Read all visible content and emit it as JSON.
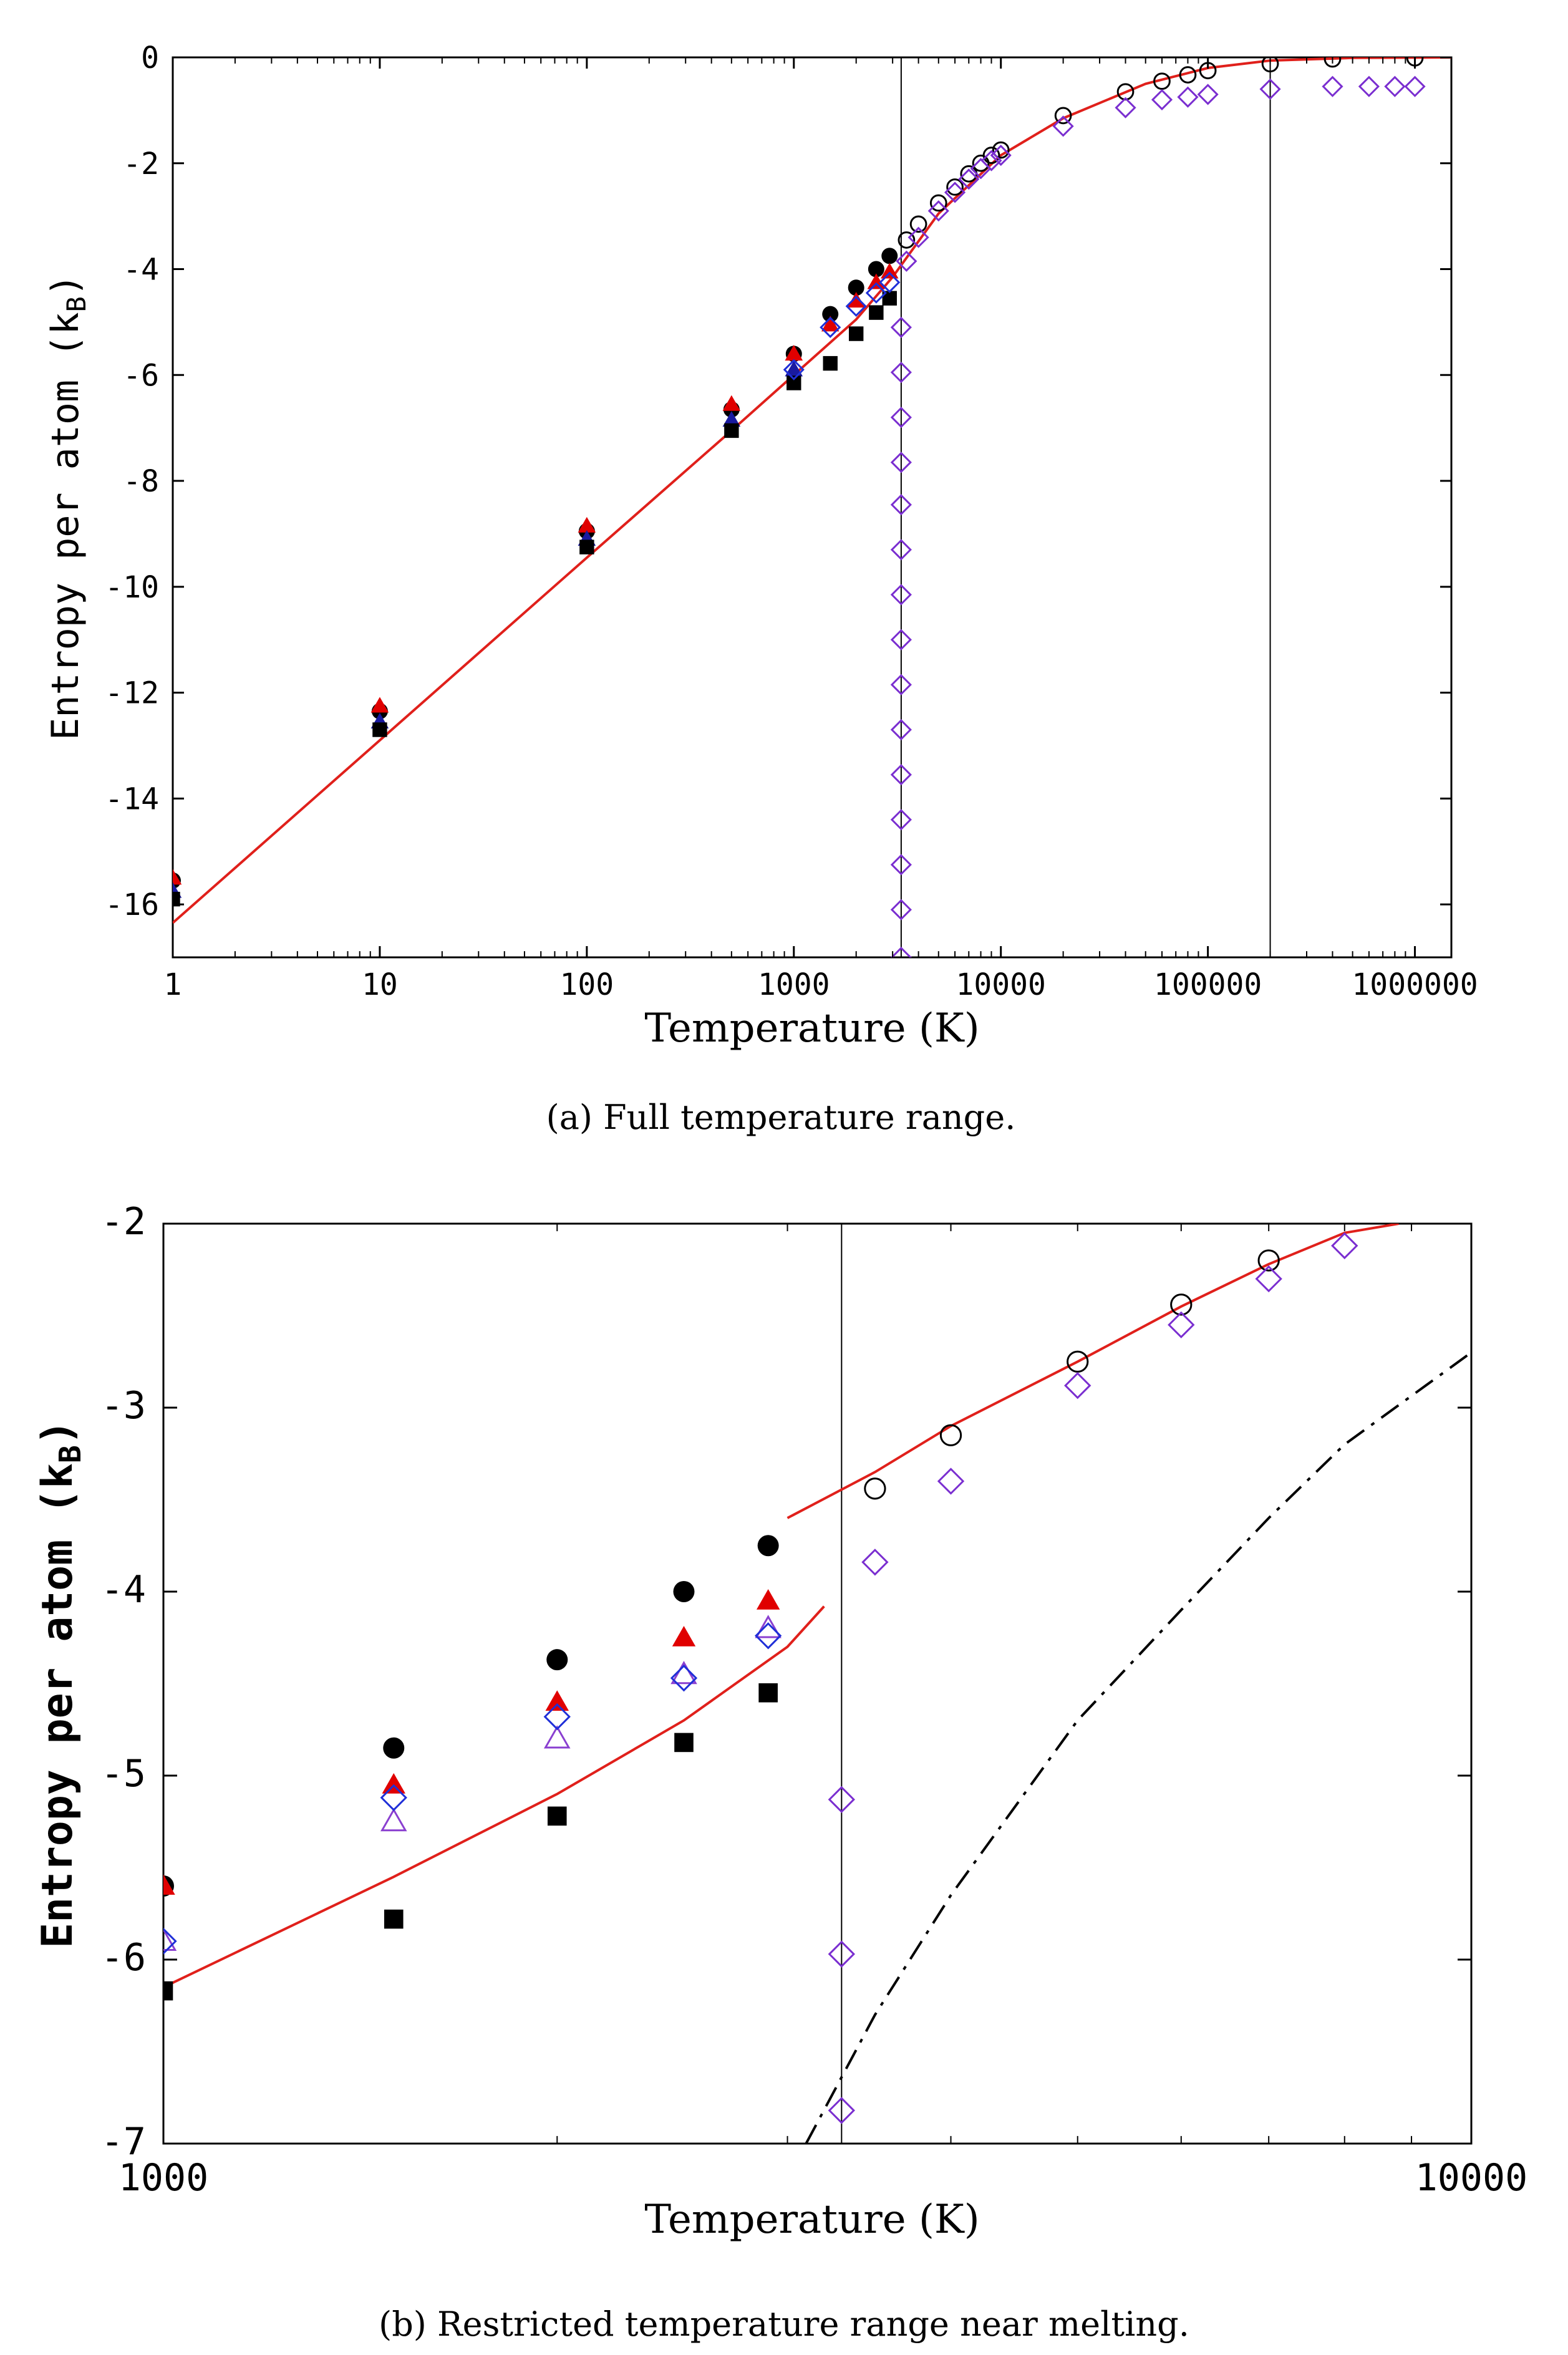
{
  "colors": {
    "fit": "#e0201b",
    "solid_black": "#000000",
    "triangle_red": "#e00000",
    "triangle_blue": "#1a1aa0",
    "diamond_blue": "#1f2fd8",
    "triangle_violet": "#8a3fd0",
    "diamond_violet": "#7a2ed0",
    "melt_line": "#000000"
  },
  "chart_data": [
    {
      "type": "scatter",
      "caption": "(a)  Full temperature range.",
      "xlabel": "Temperature (K)",
      "ylabel_main": "Entropy per atom (k",
      "ylabel_sub": "B",
      "ylabel_end": ")",
      "xscale": "log",
      "xlim": [
        1,
        1500000
      ],
      "ylim": [
        -17,
        0
      ],
      "xticks": [
        {
          "v": 1,
          "label": "1"
        },
        {
          "v": 10,
          "label": "10"
        },
        {
          "v": 100,
          "label": "100"
        },
        {
          "v": 1000,
          "label": "1000"
        },
        {
          "v": 10000,
          "label": "10000"
        },
        {
          "v": 100000,
          "label": "100000"
        },
        {
          "v": 1000000,
          "label": "1000000"
        }
      ],
      "yticks": [
        {
          "v": 0,
          "label": "0"
        },
        {
          "v": -2,
          "label": "-2"
        },
        {
          "v": -4,
          "label": "-4"
        },
        {
          "v": -6,
          "label": "-6"
        },
        {
          "v": -8,
          "label": "-8"
        },
        {
          "v": -10,
          "label": "-10"
        },
        {
          "v": -12,
          "label": "-12"
        },
        {
          "v": -14,
          "label": "-14"
        },
        {
          "v": -16,
          "label": "-16"
        }
      ],
      "vlines": [
        3300,
        200000
      ],
      "series": [
        {
          "name": "fit-line",
          "style": "line",
          "color": "fit",
          "x": [
            1,
            10,
            100,
            500,
            1000,
            2000,
            3000,
            5000,
            10000,
            20000,
            50000,
            100000,
            200000,
            500000,
            1500000
          ],
          "y": [
            -16.35,
            -12.9,
            -9.45,
            -7.05,
            -6.0,
            -4.95,
            -4.15,
            -2.95,
            -1.85,
            -1.15,
            -0.5,
            -0.2,
            -0.06,
            -0.01,
            0
          ]
        },
        {
          "name": "solid circles",
          "style": "circle-filled",
          "color": "solid_black",
          "x": [
            1,
            10,
            100,
            500,
            1000,
            1500,
            2000,
            2500,
            2900
          ],
          "y": [
            -15.55,
            -12.35,
            -8.95,
            -6.65,
            -5.6,
            -4.85,
            -4.35,
            -4.0,
            -3.75
          ]
        },
        {
          "name": "red triangles",
          "style": "triangle-filled",
          "color": "triangle_red",
          "x": [
            1,
            10,
            100,
            500,
            1000,
            1500,
            2000,
            2500,
            2900
          ],
          "y": [
            -15.5,
            -12.25,
            -8.85,
            -6.55,
            -5.6,
            -5.05,
            -4.6,
            -4.25,
            -4.05
          ]
        },
        {
          "name": "blue triangles",
          "style": "triangle-filled",
          "color": "triangle_blue",
          "x": [
            1,
            10,
            100,
            500,
            1000
          ],
          "y": [
            -15.75,
            -12.55,
            -9.1,
            -6.85,
            -5.9
          ]
        },
        {
          "name": "solid squares",
          "style": "square-filled",
          "color": "solid_black",
          "x": [
            1,
            10,
            100,
            500,
            1000,
            1500,
            2000,
            2500,
            2900
          ],
          "y": [
            -15.9,
            -12.7,
            -9.25,
            -7.05,
            -6.15,
            -5.78,
            -5.22,
            -4.82,
            -4.55
          ]
        },
        {
          "name": "open diamonds blue",
          "style": "diamond-open",
          "color": "diamond_blue",
          "x": [
            1000,
            1500,
            2000,
            2500,
            2900
          ],
          "y": [
            -5.9,
            -5.1,
            -4.7,
            -4.45,
            -4.25
          ]
        },
        {
          "name": "open circles",
          "style": "circle-open",
          "color": "solid_black",
          "x": [
            3500,
            4000,
            5000,
            6000,
            7000,
            8000,
            9000,
            10000,
            20000,
            40000,
            60000,
            80000,
            100000,
            200000,
            400000,
            1000000
          ],
          "y": [
            -3.45,
            -3.15,
            -2.75,
            -2.45,
            -2.2,
            -2.0,
            -1.85,
            -1.75,
            -1.1,
            -0.65,
            -0.45,
            -0.33,
            -0.25,
            -0.12,
            -0.03,
            -0.01
          ]
        },
        {
          "name": "open diamonds violet",
          "style": "diamond-open",
          "color": "diamond_violet",
          "x": [
            3300,
            3300,
            3300,
            3300,
            3300,
            3300,
            3300,
            3300,
            3300,
            3300,
            3300,
            3300,
            3300,
            3300,
            3300,
            3500,
            4000,
            5000,
            6000,
            7000,
            8000,
            9000,
            10000,
            20000,
            40000,
            60000,
            80000,
            100000,
            200000,
            400000,
            600000,
            800000,
            1000000
          ],
          "y": [
            -17.0,
            -16.1,
            -15.25,
            -14.4,
            -13.55,
            -12.7,
            -11.85,
            -11.0,
            -10.15,
            -9.3,
            -8.45,
            -7.65,
            -6.8,
            -5.95,
            -5.1,
            -3.85,
            -3.4,
            -2.9,
            -2.55,
            -2.3,
            -2.1,
            -1.95,
            -1.85,
            -1.3,
            -0.95,
            -0.8,
            -0.75,
            -0.7,
            -0.6,
            -0.55,
            -0.55,
            -0.55,
            -0.55
          ]
        }
      ]
    },
    {
      "type": "scatter",
      "caption": "(b)  Restricted temperature range near melting.",
      "xlabel": "Temperature (K)",
      "ylabel_main": "Entropy per atom (k",
      "ylabel_sub": "B",
      "ylabel_end": ")",
      "xscale": "log",
      "xlim": [
        1000,
        10000
      ],
      "ylim": [
        -7,
        -2
      ],
      "xticks": [
        {
          "v": 1000,
          "label": "1000"
        },
        {
          "v": 10000,
          "label": "10000"
        }
      ],
      "yticks": [
        {
          "v": -2,
          "label": "-2"
        },
        {
          "v": -3,
          "label": "-3"
        },
        {
          "v": -4,
          "label": "-4"
        },
        {
          "v": -5,
          "label": "-5"
        },
        {
          "v": -6,
          "label": "-6"
        },
        {
          "v": -7,
          "label": "-7"
        }
      ],
      "vlines": [
        3300
      ],
      "series": [
        {
          "name": "solid fit",
          "style": "line",
          "color": "fit",
          "x": [
            1000,
            1500,
            2000,
            2500,
            3000,
            3200
          ],
          "y": [
            -6.15,
            -5.55,
            -5.1,
            -4.7,
            -4.3,
            -4.08
          ]
        },
        {
          "name": "liquid fit",
          "style": "line",
          "color": "fit",
          "x": [
            3000,
            3500,
            4000,
            5000,
            6000,
            7000,
            8000,
            8800
          ],
          "y": [
            -3.6,
            -3.35,
            -3.1,
            -2.75,
            -2.45,
            -2.22,
            -2.05,
            -2.0
          ]
        },
        {
          "name": "dash-dot curve",
          "style": "dashdot",
          "color": "solid_black",
          "x": [
            3100,
            3500,
            4000,
            5000,
            6000,
            7000,
            8000,
            10000
          ],
          "y": [
            -7.0,
            -6.3,
            -5.65,
            -4.7,
            -4.1,
            -3.6,
            -3.2,
            -2.7
          ]
        },
        {
          "name": "solid circles",
          "style": "circle-filled",
          "color": "solid_black",
          "x": [
            1000,
            1500,
            2000,
            2500,
            2900
          ],
          "y": [
            -5.6,
            -4.85,
            -4.37,
            -4.0,
            -3.75
          ]
        },
        {
          "name": "red triangles",
          "style": "triangle-filled",
          "color": "triangle_red",
          "x": [
            1000,
            1500,
            2000,
            2500,
            2900
          ],
          "y": [
            -5.6,
            -5.05,
            -4.6,
            -4.25,
            -4.05
          ]
        },
        {
          "name": "open triangles",
          "style": "triangle-open",
          "color": "triangle_violet",
          "x": [
            1000,
            1500,
            2000,
            2500,
            2900
          ],
          "y": [
            -5.9,
            -5.25,
            -4.8,
            -4.45,
            -4.2
          ]
        },
        {
          "name": "open diamonds blue",
          "style": "diamond-open",
          "color": "diamond_blue",
          "x": [
            1000,
            1500,
            2000,
            2500,
            2900
          ],
          "y": [
            -5.9,
            -5.12,
            -4.68,
            -4.47,
            -4.24
          ]
        },
        {
          "name": "solid squares",
          "style": "square-filled",
          "color": "solid_black",
          "x": [
            1000,
            1500,
            2000,
            2500,
            2900
          ],
          "y": [
            -6.17,
            -5.78,
            -5.22,
            -4.82,
            -4.55
          ]
        },
        {
          "name": "open circles",
          "style": "circle-open",
          "color": "solid_black",
          "x": [
            3500,
            4000,
            5000,
            6000,
            7000
          ],
          "y": [
            -3.44,
            -3.15,
            -2.75,
            -2.44,
            -2.2
          ]
        },
        {
          "name": "open diamonds violet",
          "style": "diamond-open",
          "color": "diamond_violet",
          "x": [
            3300,
            3300,
            3300,
            3500,
            4000,
            5000,
            6000,
            7000,
            8000
          ],
          "y": [
            -6.82,
            -5.97,
            -5.13,
            -3.84,
            -3.4,
            -2.88,
            -2.55,
            -2.3,
            -2.12
          ]
        }
      ]
    }
  ]
}
